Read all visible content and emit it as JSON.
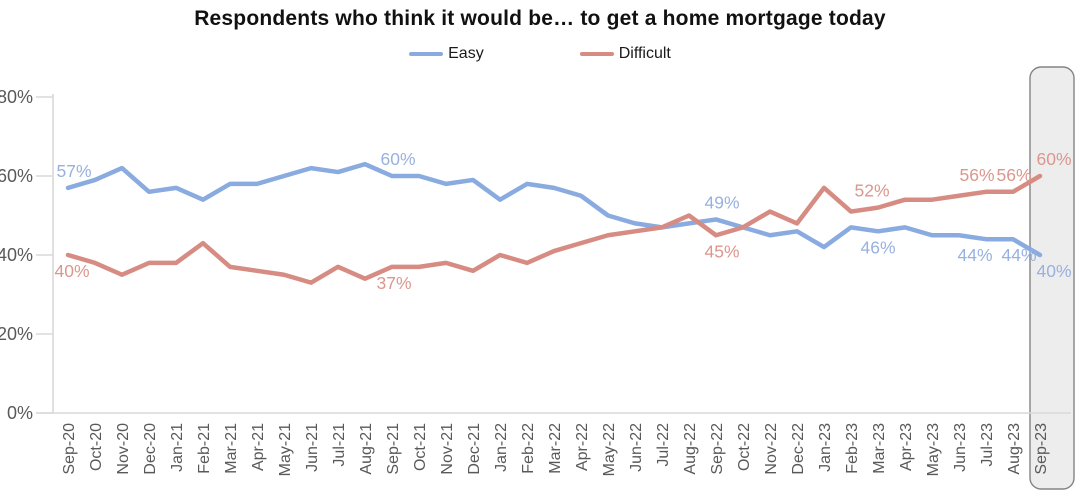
{
  "chart_data": {
    "type": "line",
    "title": "Respondents who think it would be… to get a home mortgage today",
    "x": [
      "Sep-20",
      "Oct-20",
      "Nov-20",
      "Dec-20",
      "Jan-21",
      "Feb-21",
      "Mar-21",
      "Apr-21",
      "May-21",
      "Jun-21",
      "Jul-21",
      "Aug-21",
      "Sep-21",
      "Oct-21",
      "Nov-21",
      "Dec-21",
      "Jan-22",
      "Feb-22",
      "Mar-22",
      "Apr-22",
      "May-22",
      "Jun-22",
      "Jul-22",
      "Aug-22",
      "Sep-22",
      "Oct-22",
      "Nov-22",
      "Dec-22",
      "Jan-23",
      "Feb-23",
      "Mar-23",
      "Apr-23",
      "May-23",
      "Jun-23",
      "Jul-23",
      "Aug-23",
      "Sep-23"
    ],
    "series": [
      {
        "name": "Easy",
        "color": "#8AABDF",
        "label_color": "#98B1DF",
        "values": [
          57,
          59,
          62,
          56,
          57,
          54,
          58,
          58,
          60,
          62,
          61,
          63,
          60,
          60,
          58,
          59,
          54,
          58,
          57,
          55,
          50,
          48,
          47,
          48,
          49,
          47,
          45,
          46,
          42,
          47,
          46,
          47,
          45,
          45,
          44,
          44,
          40
        ]
      },
      {
        "name": "Difficult",
        "color": "#D68C82",
        "label_color": "#DB978D",
        "values": [
          40,
          38,
          35,
          38,
          38,
          43,
          37,
          36,
          35,
          33,
          37,
          34,
          37,
          37,
          38,
          36,
          40,
          38,
          41,
          43,
          45,
          46,
          47,
          50,
          45,
          47,
          51,
          48,
          57,
          51,
          52,
          54,
          54,
          55,
          56,
          56,
          60
        ]
      }
    ],
    "y_ticks": [
      {
        "value": 0,
        "label": "0%"
      },
      {
        "value": 20,
        "label": "20%"
      },
      {
        "value": 40,
        "label": "40%"
      },
      {
        "value": 60,
        "label": "60%"
      },
      {
        "value": 80,
        "label": "80%"
      }
    ],
    "ylim": [
      0,
      80
    ],
    "grid": false,
    "legend_position": "top",
    "highlighted_month": "Sep-23",
    "highlight_style": {
      "fill": "#EDEDED",
      "stroke": "#848484"
    },
    "axis_color": "#D9D9D9",
    "tick_label_color": "#595959",
    "point_labels": [
      {
        "series": "Easy",
        "x": "Sep-20",
        "text": "57%",
        "pos": "above",
        "dx": 6
      },
      {
        "series": "Easy",
        "x": "Sep-21",
        "text": "60%",
        "pos": "above",
        "dx": 6
      },
      {
        "series": "Easy",
        "x": "Sep-22",
        "text": "49%",
        "pos": "above",
        "dx": 6
      },
      {
        "series": "Easy",
        "x": "Mar-23",
        "text": "46%",
        "pos": "below",
        "dx": 0
      },
      {
        "series": "Easy",
        "x": "Jul-23",
        "text": "44%",
        "pos": "below",
        "dx": -11
      },
      {
        "series": "Easy",
        "x": "Aug-23",
        "text": "44%",
        "pos": "below",
        "dx": 6
      },
      {
        "series": "Easy",
        "x": "Sep-23",
        "text": "40%",
        "pos": "below",
        "dx": 14
      },
      {
        "series": "Difficult",
        "x": "Sep-20",
        "text": "40%",
        "pos": "below",
        "dx": 4
      },
      {
        "series": "Difficult",
        "x": "Sep-21",
        "text": "37%",
        "pos": "below",
        "dx": 2
      },
      {
        "series": "Difficult",
        "x": "Sep-22",
        "text": "45%",
        "pos": "below",
        "dx": 6
      },
      {
        "series": "Difficult",
        "x": "Mar-23",
        "text": "52%",
        "pos": "above",
        "dx": -6
      },
      {
        "series": "Difficult",
        "x": "Jul-23",
        "text": "56%",
        "pos": "above",
        "dx": -9
      },
      {
        "series": "Difficult",
        "x": "Aug-23",
        "text": "56%",
        "pos": "above",
        "dx": 1
      },
      {
        "series": "Difficult",
        "x": "Sep-23",
        "text": "60%",
        "pos": "above",
        "dx": 14
      }
    ]
  }
}
